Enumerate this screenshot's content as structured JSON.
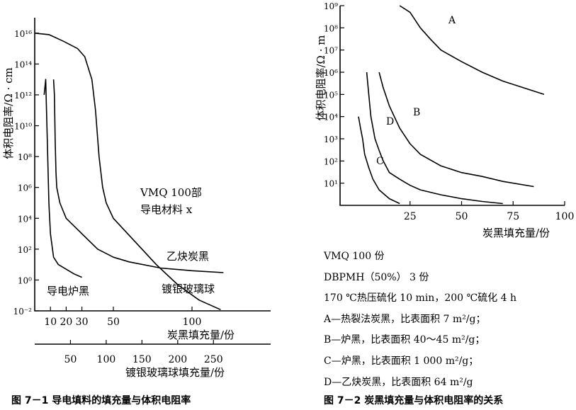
{
  "chart_data": [
    {
      "type": "line",
      "caption": "图 7－1  导电填料的填充量与体积电阻率",
      "ylabel": "体积电阻率/Ω · cm",
      "y_scale": "log",
      "ylim": [
        0.01,
        1e+17
      ],
      "y_tick_labels": [
        "10⁻²",
        "10⁰",
        "10²",
        "10⁴",
        "10⁶",
        "10⁸",
        "10¹⁰",
        "10¹²",
        "10¹⁴",
        "10¹⁶"
      ],
      "y_tick_values": [
        0.01,
        1,
        100,
        10000.0,
        1000000.0,
        100000000.0,
        10000000000.0,
        1000000000000.0,
        100000000000000.0,
        1e+16
      ],
      "xlabel_top": "炭黑填充量/份",
      "x_top_ticks": [
        10,
        20,
        30,
        50,
        100
      ],
      "xlim_top": [
        0,
        150
      ],
      "xlabel_bottom": "镀银玻璃球填充量/份",
      "x_bottom_ticks": [
        50,
        100,
        150,
        200,
        250
      ],
      "xlim_bottom": [
        0,
        330
      ],
      "annotation": [
        "VMQ  100部",
        "导电材料  x"
      ],
      "series": [
        {
          "name": "导电炉黑",
          "axis": "top",
          "x": [
            6,
            7,
            8,
            9,
            10,
            12,
            15,
            20,
            25,
            30
          ],
          "y": [
            1000000000000.0,
            10000000000000.0,
            1000000000.0,
            100000.0,
            1000.0,
            30,
            10,
            5,
            2.5,
            1.5
          ]
        },
        {
          "name": "乙炔炭黑",
          "axis": "top",
          "x": [
            12,
            12.5,
            13,
            13.5,
            14,
            16,
            20,
            30,
            40,
            50,
            60,
            80,
            100,
            120
          ],
          "y": [
            10000000000000.0,
            1000000000000.0,
            1000000000.0,
            10000000.0,
            1000000.0,
            100000.0,
            10000.0,
            1000.0,
            100,
            30,
            15,
            6,
            4,
            3
          ]
        },
        {
          "name": "镀银玻璃球",
          "axis": "bottom",
          "x": [
            0,
            20,
            40,
            60,
            70,
            80,
            85,
            90,
            95,
            100,
            110,
            130,
            150,
            170,
            200,
            230,
            260
          ],
          "y": [
            1e+16,
            8000000000000000.0,
            3000000000000000.0,
            1000000000000000.0,
            300000000000000.0,
            10000000000000.0,
            100000000000.0,
            100000000.0,
            1000000.0,
            100000.0,
            10000.0,
            1000,
            100,
            10,
            0.5,
            0.05,
            0.012
          ]
        }
      ]
    },
    {
      "type": "line",
      "caption": "图 7－2  炭黑填充量与体积电阻率的关系",
      "ylabel": "体积电阻率/Ω · m",
      "y_scale": "log",
      "ylim": [
        1,
        1000000000.0
      ],
      "y_tick_labels": [
        "10¹",
        "10²",
        "10³",
        "10⁴",
        "10⁵",
        "10⁶",
        "10⁷",
        "10⁸",
        "10⁹"
      ],
      "y_tick_values": [
        10,
        100,
        1000,
        10000,
        100000,
        1000000,
        10000000,
        100000000,
        1000000000
      ],
      "xlabel": "炭黑填充量/份",
      "x_ticks": [
        25,
        50,
        75,
        100
      ],
      "xlim": [
        0,
        100
      ],
      "series": [
        {
          "name": "A",
          "x": [
            20,
            25,
            30,
            35,
            40,
            50,
            60,
            70,
            80,
            90
          ],
          "y": [
            1000000000.0,
            500000000.0,
            100000000.0,
            30000000.0,
            10000000.0,
            3000000.0,
            1000000.0,
            400000.0,
            200000.0,
            100000.0
          ]
        },
        {
          "name": "B",
          "x": [
            10,
            12,
            15,
            20,
            25,
            30,
            40,
            50,
            60,
            70,
            85
          ],
          "y": [
            1000000.0,
            200000.0,
            30000.0,
            3000.0,
            600,
            200,
            60,
            30,
            20,
            12,
            7
          ]
        },
        {
          "name": "D",
          "x": [
            4,
            5,
            6,
            8,
            10,
            12,
            15,
            20,
            25,
            30,
            40,
            50,
            60,
            70
          ],
          "y": [
            1000000.0,
            100000.0,
            10000.0,
            1000.0,
            300,
            100,
            30,
            15,
            8,
            5,
            3,
            2,
            1.5,
            1.2
          ]
        },
        {
          "name": "C",
          "x": [
            0,
            1,
            2,
            3,
            5,
            7,
            10,
            15,
            20
          ],
          "y": [
            10000.0,
            3000.0,
            1000.0,
            200,
            50,
            15,
            5,
            2,
            1.2
          ]
        }
      ],
      "legend_notes": [
        "VMQ    100 份",
        "DBPMH（50%）    3 份",
        "170 ℃热压硫化 10 min，200 ℃硫化 4 h",
        "A—热裂法炭黑，比表面积 7 m²/g；",
        "B—炉黑，比表面积 40～45 m²/g；",
        "C—炉黑，比表面积 1 000 m²/g；",
        "D—乙炔炭黑，比表面积 64 m²/g"
      ]
    }
  ]
}
